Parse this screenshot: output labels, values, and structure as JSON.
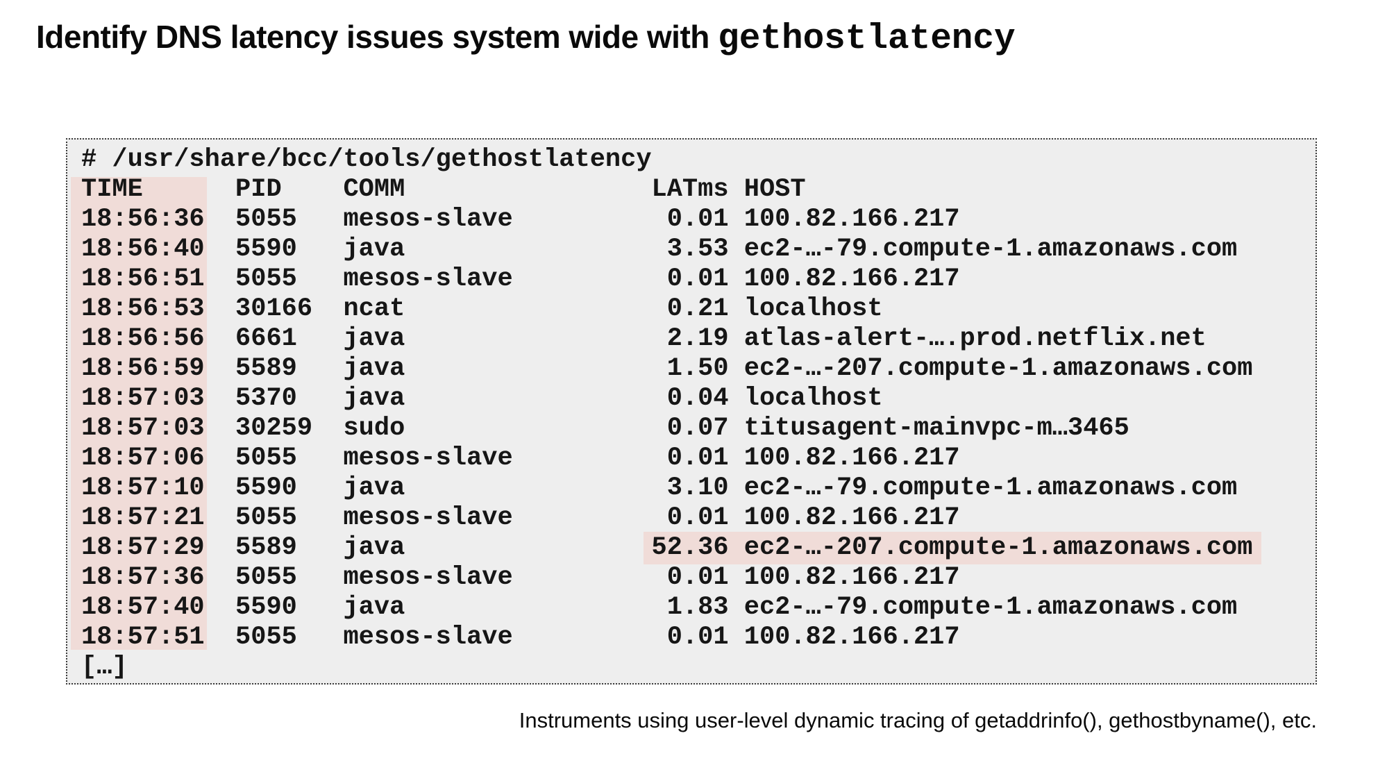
{
  "title": {
    "text": "Identify DNS latency issues system wide with ",
    "command": "gethostlatency"
  },
  "terminal": {
    "command_line": "# /usr/share/bcc/tools/gethostlatency",
    "columns": [
      "TIME",
      "PID",
      "COMM",
      "LATms",
      "HOST"
    ],
    "rows": [
      {
        "time": "18:56:36",
        "pid": "5055",
        "comm": "mesos-slave",
        "lat": "0.01",
        "host": "100.82.166.217",
        "highlight": false
      },
      {
        "time": "18:56:40",
        "pid": "5590",
        "comm": "java",
        "lat": "3.53",
        "host": "ec2-…-79.compute-1.amazonaws.com",
        "highlight": false
      },
      {
        "time": "18:56:51",
        "pid": "5055",
        "comm": "mesos-slave",
        "lat": "0.01",
        "host": "100.82.166.217",
        "highlight": false
      },
      {
        "time": "18:56:53",
        "pid": "30166",
        "comm": "ncat",
        "lat": "0.21",
        "host": "localhost",
        "highlight": false
      },
      {
        "time": "18:56:56",
        "pid": "6661",
        "comm": "java",
        "lat": "2.19",
        "host": "atlas-alert-….prod.netflix.net",
        "highlight": false
      },
      {
        "time": "18:56:59",
        "pid": "5589",
        "comm": "java",
        "lat": "1.50",
        "host": "ec2-…-207.compute-1.amazonaws.com",
        "highlight": false
      },
      {
        "time": "18:57:03",
        "pid": "5370",
        "comm": "java",
        "lat": "0.04",
        "host": "localhost",
        "highlight": false
      },
      {
        "time": "18:57:03",
        "pid": "30259",
        "comm": "sudo",
        "lat": "0.07",
        "host": "titusagent-mainvpc-m…3465",
        "highlight": false
      },
      {
        "time": "18:57:06",
        "pid": "5055",
        "comm": "mesos-slave",
        "lat": "0.01",
        "host": "100.82.166.217",
        "highlight": false
      },
      {
        "time": "18:57:10",
        "pid": "5590",
        "comm": "java",
        "lat": "3.10",
        "host": "ec2-…-79.compute-1.amazonaws.com",
        "highlight": false
      },
      {
        "time": "18:57:21",
        "pid": "5055",
        "comm": "mesos-slave",
        "lat": "0.01",
        "host": "100.82.166.217",
        "highlight": false
      },
      {
        "time": "18:57:29",
        "pid": "5589",
        "comm": "java",
        "lat": "52.36",
        "host": "ec2-…-207.compute-1.amazonaws.com",
        "highlight": true
      },
      {
        "time": "18:57:36",
        "pid": "5055",
        "comm": "mesos-slave",
        "lat": "0.01",
        "host": "100.82.166.217",
        "highlight": false
      },
      {
        "time": "18:57:40",
        "pid": "5590",
        "comm": "java",
        "lat": "1.83",
        "host": "ec2-…-79.compute-1.amazonaws.com",
        "highlight": false
      },
      {
        "time": "18:57:51",
        "pid": "5055",
        "comm": "mesos-slave",
        "lat": "0.01",
        "host": "100.82.166.217",
        "highlight": false
      }
    ],
    "truncation": "[…]"
  },
  "caption": "Instruments using user-level dynamic tracing of getaddrinfo(), gethostbyname(), etc.",
  "colors": {
    "highlight_pink": "#f0dcd8",
    "terminal_bg": "#eeeeee"
  }
}
